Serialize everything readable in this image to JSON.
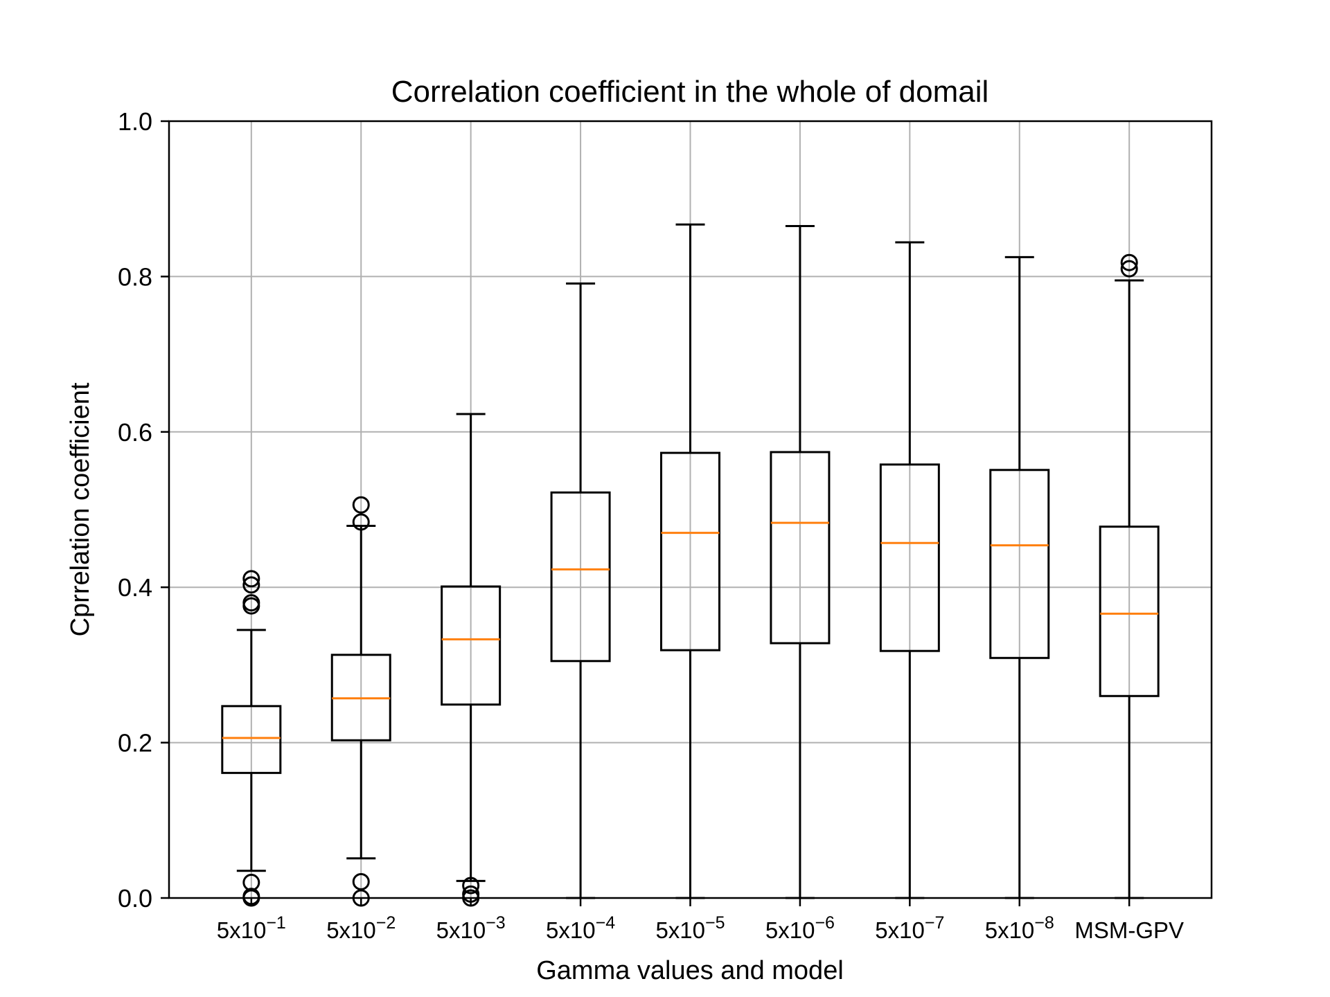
{
  "chart_data": {
    "type": "boxplot",
    "title": "Correlation coefficient in the whole of domail",
    "xlabel": "Gamma values and model",
    "ylabel": "Cprrelation coefficient",
    "ylim": [
      0.0,
      1.0
    ],
    "yticks": [
      "0.0",
      "0.2",
      "0.4",
      "0.6",
      "0.8",
      "1.0"
    ],
    "grid": true,
    "categories": [
      {
        "base": "5x10",
        "exp": "−1"
      },
      {
        "base": "5x10",
        "exp": "−2"
      },
      {
        "base": "5x10",
        "exp": "−3"
      },
      {
        "base": "5x10",
        "exp": "−4"
      },
      {
        "base": "5x10",
        "exp": "−5"
      },
      {
        "base": "5x10",
        "exp": "−6"
      },
      {
        "base": "5x10",
        "exp": "−7"
      },
      {
        "base": "5x10",
        "exp": "−8"
      },
      {
        "base": "MSM-GPV",
        "exp": ""
      }
    ],
    "boxes": [
      {
        "whisker_low": 0.035,
        "q1": 0.161,
        "median": 0.206,
        "q3": 0.247,
        "whisker_high": 0.345,
        "outliers": [
          0.0,
          0.002,
          0.02,
          0.376,
          0.38,
          0.403,
          0.411
        ]
      },
      {
        "whisker_low": 0.051,
        "q1": 0.203,
        "median": 0.257,
        "q3": 0.313,
        "whisker_high": 0.479,
        "outliers": [
          0.0,
          0.021,
          0.484,
          0.506
        ]
      },
      {
        "whisker_low": 0.022,
        "q1": 0.249,
        "median": 0.333,
        "q3": 0.401,
        "whisker_high": 0.623,
        "outliers": [
          0.0,
          0.005,
          0.016
        ]
      },
      {
        "whisker_low": 0.0,
        "q1": 0.305,
        "median": 0.423,
        "q3": 0.522,
        "whisker_high": 0.791,
        "outliers": []
      },
      {
        "whisker_low": 0.0,
        "q1": 0.319,
        "median": 0.47,
        "q3": 0.573,
        "whisker_high": 0.867,
        "outliers": []
      },
      {
        "whisker_low": 0.0,
        "q1": 0.328,
        "median": 0.483,
        "q3": 0.574,
        "whisker_high": 0.865,
        "outliers": []
      },
      {
        "whisker_low": 0.0,
        "q1": 0.318,
        "median": 0.457,
        "q3": 0.558,
        "whisker_high": 0.844,
        "outliers": []
      },
      {
        "whisker_low": 0.0,
        "q1": 0.309,
        "median": 0.454,
        "q3": 0.551,
        "whisker_high": 0.825,
        "outliers": []
      },
      {
        "whisker_low": 0.0,
        "q1": 0.26,
        "median": 0.366,
        "q3": 0.478,
        "whisker_high": 0.795,
        "outliers": [
          0.81,
          0.818
        ]
      }
    ],
    "colors": {
      "box": "#000000",
      "median": "#ff7f0e",
      "grid": "#b0b0b0"
    }
  }
}
